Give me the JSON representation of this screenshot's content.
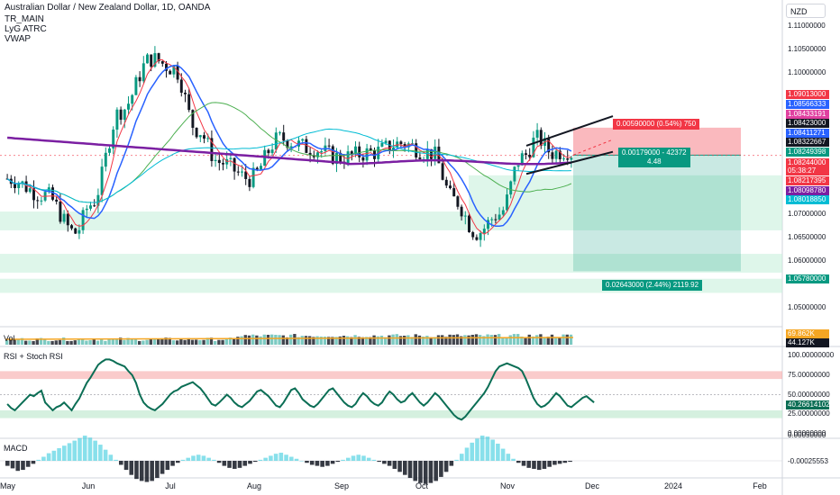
{
  "header": {
    "symbol_line": "Australian Dollar / New Zealand Dollar, 1D, OANDA",
    "indicators": [
      "TR_MAIN",
      "LyG ATRC",
      "VWAP"
    ],
    "currency_button": "NZD"
  },
  "price_axis": {
    "ticks": [
      {
        "value": 1.11,
        "label": "1.11000000"
      },
      {
        "value": 1.105,
        "label": "1.10500000"
      },
      {
        "value": 1.1,
        "label": "1.10000000"
      },
      {
        "value": 1.07,
        "label": "1.07000000"
      },
      {
        "value": 1.065,
        "label": "1.06500000"
      },
      {
        "value": 1.06,
        "label": "1.06000000"
      },
      {
        "value": 1.05,
        "label": "1.05000000"
      }
    ],
    "tags": [
      {
        "value": 1.09013,
        "label": "1.09013000",
        "color": "#f23645"
      },
      {
        "value": 1.0856633,
        "label": "1.08566333",
        "color": "#2962ff"
      },
      {
        "value": 1.0843319,
        "label": "1.08433191",
        "color": "#e040a0"
      },
      {
        "value": 1.08423,
        "label": "1.08423000",
        "color": "#131722"
      },
      {
        "value": 1.0841127,
        "label": "1.08411271",
        "color": "#2962ff"
      },
      {
        "value": 1.0832267,
        "label": "1.08322667",
        "color": "#131722"
      },
      {
        "value": 1.082494,
        "label": "1.08249398",
        "color": "#089981"
      },
      {
        "value": 1.08244,
        "label": "1.08244000",
        "color": "#f23645",
        "sub": "05:38:27"
      },
      {
        "value": 1.082174,
        "label": "1.08217395",
        "color": "#f23645"
      },
      {
        "value": 1.0809878,
        "label": "1.08098780",
        "color": "#7b1fa2"
      },
      {
        "value": 1.0801885,
        "label": "1.08018850",
        "color": "#00bcd4"
      },
      {
        "value": 1.0578,
        "label": "1.05780000",
        "color": "#089981"
      }
    ],
    "range": [
      1.046,
      1.1155
    ]
  },
  "position_tool": {
    "stop_label": "0.00590000 (0.54%) 750",
    "entry_label_line1": "0.00179000 - 42372",
    "entry_label_line2": "4.48",
    "target_label": "0.02643000 (2.44%) 2119.92",
    "stop_color": "#f23645",
    "target_color": "#089981"
  },
  "volume_pane": {
    "label": "Vol",
    "tags": [
      {
        "label": "69.862K",
        "color": "#f5a623"
      },
      {
        "label": "44.127K",
        "color": "#131722"
      }
    ]
  },
  "rsi_pane": {
    "label": "RSI + Stoch RSI",
    "ticks": [
      {
        "value": 100,
        "label": "100.00000000"
      },
      {
        "value": 75,
        "label": "75.00000000"
      },
      {
        "value": 50,
        "label": "50.00000000"
      },
      {
        "value": 25,
        "label": "25.00000000"
      },
      {
        "value": 0,
        "label": "0.00000000"
      }
    ],
    "tag": {
      "value": 40.26614102,
      "label": "40.26614102",
      "color": "#0b6e55"
    },
    "series": [
      38,
      33,
      30,
      35,
      40,
      45,
      50,
      48,
      52,
      55,
      40,
      35,
      30,
      34,
      36,
      40,
      35,
      30,
      38,
      45,
      55,
      65,
      72,
      80,
      88,
      92,
      95,
      95,
      93,
      90,
      88,
      86,
      80,
      75,
      65,
      50,
      40,
      35,
      32,
      30,
      34,
      38,
      44,
      50,
      54,
      56,
      60,
      62,
      64,
      66,
      62,
      58,
      52,
      45,
      38,
      36,
      40,
      45,
      50,
      46,
      40,
      36,
      34,
      38,
      42,
      48,
      54,
      56,
      52,
      48,
      42,
      36,
      34,
      40,
      48,
      56,
      58,
      52,
      44,
      40,
      36,
      34,
      38,
      44,
      50,
      56,
      58,
      52,
      46,
      40,
      36,
      34,
      38,
      46,
      52,
      48,
      42,
      38,
      36,
      40,
      48,
      54,
      50,
      44,
      40,
      42,
      48,
      52,
      46,
      40,
      36,
      40,
      46,
      52,
      48,
      42,
      36,
      30,
      24,
      20,
      18,
      22,
      28,
      34,
      40,
      46,
      52,
      60,
      70,
      80,
      86,
      88,
      90,
      88,
      86,
      84,
      80,
      70,
      58,
      46,
      38,
      34,
      36,
      40,
      46,
      52,
      48,
      42,
      36,
      34,
      38,
      42,
      46,
      48,
      44,
      40
    ]
  },
  "macd_pane": {
    "label": "MACD",
    "ticks": [
      {
        "value": 0.0005,
        "label": "0.00050000"
      }
    ],
    "tag": {
      "label": "-0.00025553",
      "color": "#131722"
    },
    "histogram": [
      -0.0001,
      -0.00015,
      -0.0002,
      -0.00018,
      -0.00012,
      -6e-05,
      2e-05,
      8e-05,
      0.00015,
      0.0002,
      0.00025,
      0.0003,
      0.00035,
      0.0004,
      0.00045,
      0.0005,
      0.00046,
      0.0004,
      0.00032,
      0.00022,
      0.00012,
      2e-05,
      -8e-05,
      -0.00018,
      -0.00028,
      -0.00036,
      -0.0004,
      -0.00042,
      -0.0004,
      -0.00034,
      -0.00026,
      -0.00018,
      -0.0001,
      -4e-05,
      2e-05,
      6e-05,
      0.0001,
      0.00012,
      0.0001,
      6e-05,
      2e-05,
      -4e-05,
      -0.0001,
      -0.00014,
      -0.00016,
      -0.00014,
      -0.0001,
      -6e-05,
      -2e-05,
      2e-05,
      6e-05,
      0.0001,
      0.00014,
      0.00016,
      0.00012,
      8e-05,
      4e-05,
      0.0,
      -4e-05,
      -8e-05,
      -0.0001,
      -0.00012,
      -0.0001,
      -6e-05,
      -2e-05,
      2e-05,
      6e-05,
      0.0001,
      0.00012,
      0.0001,
      6e-05,
      2e-05,
      -2e-05,
      -6e-05,
      -0.0001,
      -0.00016,
      -0.00022,
      -0.00028,
      -0.00034,
      -0.0004,
      -0.00044,
      -0.00046,
      -0.00044,
      -0.0004,
      -0.00032,
      -0.00022,
      -0.0001,
      2e-05,
      0.00014,
      0.00026,
      0.00036,
      0.00044,
      0.0005,
      0.00048,
      0.00042,
      0.00034,
      0.00024,
      0.00014,
      4e-05,
      -4e-05,
      -0.0001,
      -0.00014,
      -0.00016,
      -0.00018,
      -0.00016,
      -0.00012,
      -8e-05,
      -6e-05,
      -4e-05,
      -2e-05
    ]
  },
  "time_axis": {
    "labels": [
      "May",
      "Jun",
      "Jul",
      "Aug",
      "Sep",
      "Oct",
      "Nov",
      "Dec",
      "2024",
      "Feb"
    ]
  },
  "colors": {
    "up": "#089981",
    "down": "#131722",
    "vwap": "#7b1fa2",
    "ma_red": "#f23645",
    "ma_blue": "#2962ff",
    "ma_teal": "#00bcd4"
  }
}
